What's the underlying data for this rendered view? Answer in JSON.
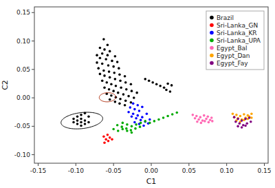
{
  "chart_data": {
    "type": "scatter",
    "xlabel": "C1",
    "ylabel": "C2",
    "xlim": [
      -0.155,
      0.155
    ],
    "ylim": [
      -0.115,
      0.16
    ],
    "xticks": [
      -0.15,
      {
        "value": -0.1,
        "label": "-0.10"
      },
      -0.05,
      {
        "value": 0.0,
        "label": "0.00"
      },
      0.05,
      {
        "value": 0.1,
        "label": "0.10"
      },
      0.15
    ],
    "yticks": [
      {
        "value": -0.1,
        "label": "-0.10"
      },
      -0.05,
      {
        "value": 0.0,
        "label": "0.00"
      },
      0.05,
      {
        "value": 0.1,
        "label": "0.10"
      },
      0.15
    ],
    "legend": "upper right",
    "series": [
      {
        "name": "Brazil",
        "color": "black",
        "x": [
          -0.063,
          -0.058,
          -0.068,
          -0.062,
          -0.055,
          -0.065,
          -0.072,
          -0.058,
          -0.048,
          -0.068,
          -0.06,
          -0.052,
          -0.045,
          -0.072,
          -0.065,
          -0.057,
          -0.05,
          -0.043,
          -0.07,
          -0.063,
          -0.056,
          -0.049,
          -0.042,
          -0.035,
          -0.068,
          -0.062,
          -0.055,
          -0.048,
          -0.041,
          -0.034,
          -0.027,
          -0.065,
          -0.059,
          -0.053,
          -0.047,
          -0.04,
          -0.033,
          -0.026,
          -0.019,
          -0.062,
          -0.056,
          -0.05,
          -0.044,
          -0.037,
          -0.03,
          -0.023,
          -0.059,
          -0.053,
          -0.047,
          -0.041,
          -0.034,
          -0.027,
          -0.055,
          -0.048,
          -0.042,
          -0.035,
          -0.008,
          -0.003,
          0.002,
          0.007,
          0.012,
          0.017,
          0.022,
          0.027,
          0.02,
          0.025,
          -0.088,
          -0.093,
          -0.098,
          -0.083,
          -0.093,
          -0.098,
          -0.103,
          -0.088,
          -0.093,
          -0.098,
          -0.083,
          -0.088,
          -0.093,
          -0.103
        ],
        "values": [
          0.103,
          0.093,
          0.088,
          0.085,
          0.082,
          0.078,
          0.075,
          0.075,
          0.073,
          0.07,
          0.068,
          0.065,
          0.063,
          0.062,
          0.06,
          0.057,
          0.055,
          0.052,
          0.052,
          0.048,
          0.046,
          0.044,
          0.041,
          0.038,
          0.042,
          0.039,
          0.036,
          0.033,
          0.03,
          0.027,
          0.024,
          0.03,
          0.027,
          0.024,
          0.021,
          0.018,
          0.015,
          0.012,
          0.009,
          0.018,
          0.015,
          0.012,
          0.009,
          0.006,
          0.003,
          0.0,
          0.007,
          0.004,
          0.001,
          -0.002,
          -0.005,
          -0.008,
          -0.003,
          -0.007,
          -0.01,
          -0.013,
          0.033,
          0.03,
          0.027,
          0.024,
          0.021,
          0.018,
          0.025,
          0.022,
          0.014,
          0.011,
          -0.027,
          -0.03,
          -0.033,
          -0.033,
          -0.037,
          -0.04,
          -0.037,
          -0.04,
          -0.043,
          -0.046,
          -0.043,
          -0.046,
          -0.049,
          -0.043
        ]
      },
      {
        "name": "Sri-Lanka_GN",
        "color": "red",
        "x": [
          -0.058,
          -0.063,
          -0.055,
          -0.06,
          -0.057,
          -0.062,
          -0.052
        ],
        "values": [
          -0.065,
          -0.068,
          -0.07,
          -0.073,
          -0.076,
          -0.079,
          -0.073
        ]
      },
      {
        "name": "Sri-Lanka_KR",
        "color": "blue",
        "x": [
          -0.028,
          -0.022,
          -0.016,
          -0.03,
          -0.024,
          -0.018,
          -0.012,
          -0.006,
          -0.026,
          -0.02,
          -0.014,
          -0.008,
          -0.002,
          -0.022,
          -0.016,
          -0.01,
          -0.004,
          -0.024,
          -0.018,
          -0.012
        ],
        "values": [
          -0.017,
          -0.02,
          -0.023,
          -0.025,
          -0.028,
          -0.031,
          -0.034,
          -0.028,
          -0.033,
          -0.036,
          -0.039,
          -0.042,
          -0.038,
          -0.043,
          -0.046,
          -0.049,
          -0.045,
          -0.01,
          -0.013,
          -0.016
        ]
      },
      {
        "name": "Sri-Lanka_UPA",
        "color": "#00aa00",
        "x": [
          -0.05,
          -0.044,
          -0.038,
          -0.032,
          -0.026,
          -0.045,
          -0.039,
          -0.033,
          -0.027,
          -0.021,
          -0.015,
          -0.038,
          -0.032,
          -0.026,
          -0.02,
          -0.014,
          -0.008,
          -0.002,
          0.004,
          0.01,
          0.016,
          0.022,
          0.028,
          0.034
        ],
        "values": [
          -0.055,
          -0.058,
          -0.055,
          -0.058,
          -0.061,
          -0.048,
          -0.051,
          -0.054,
          -0.057,
          -0.054,
          -0.051,
          -0.044,
          -0.047,
          -0.05,
          -0.047,
          -0.044,
          -0.041,
          -0.044,
          -0.041,
          -0.038,
          -0.035,
          -0.032,
          -0.029,
          -0.026
        ]
      },
      {
        "name": "Egypt_Bal",
        "color": "#ff69b4",
        "x": [
          0.055,
          0.06,
          0.065,
          0.07,
          0.075,
          0.08,
          0.058,
          0.063,
          0.068,
          0.073,
          0.078,
          0.061,
          0.066,
          0.071,
          0.076,
          0.081
        ],
        "values": [
          -0.03,
          -0.032,
          -0.034,
          -0.031,
          -0.033,
          -0.035,
          -0.036,
          -0.038,
          -0.04,
          -0.037,
          -0.039,
          -0.042,
          -0.044,
          -0.041,
          -0.043,
          -0.041
        ]
      },
      {
        "name": "Egypt_Dan",
        "color": "orange",
        "x": [
          0.108,
          0.113,
          0.118,
          0.123,
          0.128,
          0.133,
          0.11,
          0.115,
          0.12,
          0.125,
          0.13,
          0.113,
          0.118,
          0.123,
          0.128,
          0.133
        ],
        "values": [
          -0.028,
          -0.03,
          -0.032,
          -0.029,
          -0.031,
          -0.028,
          -0.034,
          -0.036,
          -0.038,
          -0.035,
          -0.033,
          -0.04,
          -0.042,
          -0.039,
          -0.037,
          -0.035
        ]
      },
      {
        "name": "Egypt_Fay",
        "color": "purple",
        "x": [
          0.11,
          0.115,
          0.12,
          0.125,
          0.13,
          0.112,
          0.117,
          0.122,
          0.127,
          0.132,
          0.115,
          0.12,
          0.125
        ],
        "values": [
          -0.034,
          -0.037,
          -0.04,
          -0.037,
          -0.035,
          -0.042,
          -0.045,
          -0.048,
          -0.045,
          -0.042,
          -0.05,
          -0.052,
          -0.049
        ]
      }
    ],
    "ellipses": [
      {
        "center": [
          -0.058,
          0.001
        ],
        "width": 0.022,
        "height": 0.016,
        "angle": 5,
        "color": "#aa2200"
      },
      {
        "center": [
          -0.092,
          -0.04
        ],
        "width": 0.056,
        "height": 0.028,
        "angle": 10,
        "color": "black"
      }
    ]
  }
}
